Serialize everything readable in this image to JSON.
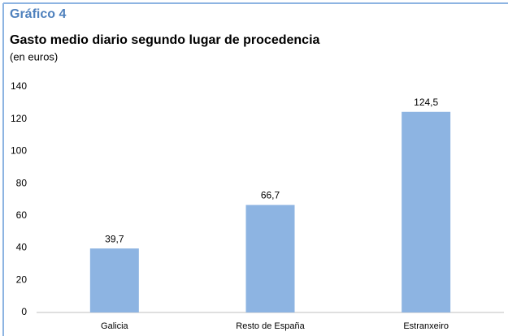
{
  "chart_data": {
    "type": "bar",
    "title": "Gráfico 4",
    "subtitle": "Gasto medio diario segundo lugar de procedencia",
    "unit_note": "(en euros)",
    "categories": [
      "Galicia",
      "Resto de España",
      "Estranxeiro"
    ],
    "values": [
      39.7,
      66.7,
      124.5
    ],
    "value_labels": [
      "39,7",
      "66,7",
      "124,5"
    ],
    "color": "#8db4e2",
    "ylim": [
      0,
      140
    ],
    "yticks": [
      0,
      20,
      40,
      60,
      80,
      100,
      120,
      140
    ],
    "grid": false
  }
}
